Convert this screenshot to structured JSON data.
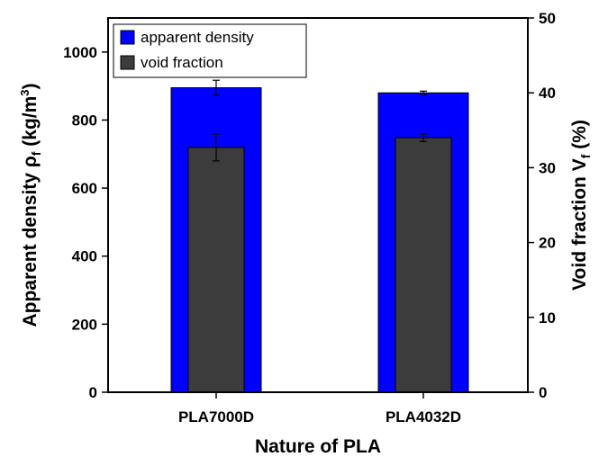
{
  "chart_data": {
    "type": "bar",
    "categories": [
      "PLA7000D",
      "PLA4032D"
    ],
    "series": [
      {
        "name": "apparent density",
        "axis": "left",
        "values": [
          895,
          880
        ],
        "errors": [
          22,
          5
        ],
        "color": "#0000FF"
      },
      {
        "name": "void fraction",
        "axis": "right",
        "values": [
          32.7,
          34.0
        ],
        "errors": [
          1.8,
          0.5
        ],
        "color": "#3C3C3C"
      }
    ],
    "xlabel": "Nature of PLA",
    "ylabel_left": {
      "main": "Apparent density ρ",
      "sub": "f",
      "unit_pre": " (kg/m",
      "sup": "3",
      "unit_post": ")"
    },
    "ylabel_right": {
      "main": "Void fraction V",
      "sub": "f",
      "unit": " (%)"
    },
    "ylim_left": [
      0,
      1100
    ],
    "ylim_right": [
      0,
      50
    ],
    "yticks_left": [
      0,
      200,
      400,
      600,
      800,
      1000
    ],
    "yticks_right": [
      0,
      10,
      20,
      30,
      40,
      50
    ],
    "grid": false,
    "legend_position": "top-left"
  }
}
